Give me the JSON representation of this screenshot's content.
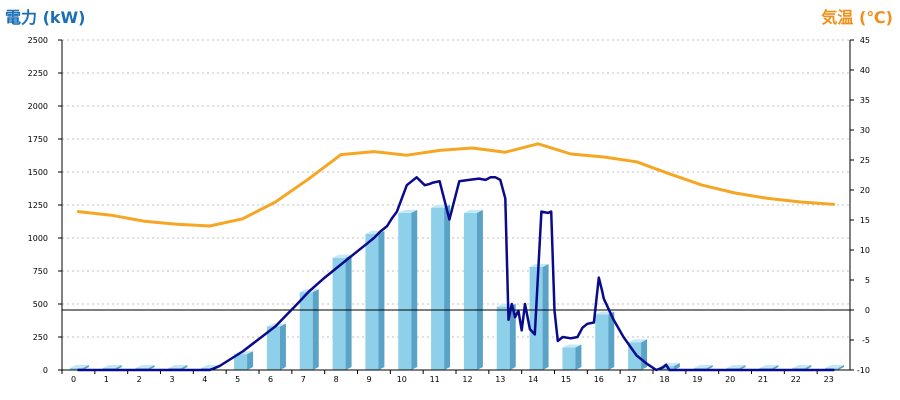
{
  "chart_data": {
    "type": "bar",
    "left_title": "電力 (kW)",
    "right_title": "気温 (℃)",
    "colors": {
      "left_title": "#1a6fb5",
      "right_title": "#f0901a",
      "bar_front": "#8ecfe9",
      "bar_side": "#5aa3c6",
      "bar_top": "#c5e8f6",
      "power_line": "#0a0a8c",
      "temperature_line": "#f5a623",
      "grid": "#c0c0c0"
    },
    "categories": [
      "0",
      "1",
      "2",
      "3",
      "4",
      "5",
      "6",
      "7",
      "8",
      "9",
      "10",
      "11",
      "12",
      "13",
      "14",
      "15",
      "16",
      "17",
      "18",
      "19",
      "20",
      "21",
      "22",
      "23"
    ],
    "ylim": [
      0,
      2500
    ],
    "y_ticks": [
      0,
      250,
      500,
      750,
      1000,
      1250,
      1500,
      1750,
      2000,
      2250,
      2500
    ],
    "y2lim": [
      -10,
      45
    ],
    "y2_ticks": [
      -10,
      -5,
      0,
      5,
      10,
      15,
      20,
      25,
      30,
      35,
      40,
      45
    ],
    "grid": true,
    "series": [
      {
        "kind": "bar",
        "values": [
          0,
          0,
          0,
          0,
          0,
          120,
          330,
          590,
          850,
          1030,
          1190,
          1230,
          1190,
          480,
          780,
          170,
          420,
          210,
          30,
          0,
          0,
          0,
          0,
          0
        ]
      },
      {
        "kind": "line",
        "axis": "left",
        "x": [
          0,
          1,
          2,
          3,
          4,
          4.3,
          5,
          6,
          6.7,
          7,
          7.5,
          8,
          8.5,
          8.8,
          9,
          9.2,
          9.4,
          9.55,
          9.7,
          10,
          10.3,
          10.55,
          10.7,
          10.8,
          11,
          11.3,
          11.6,
          11.9,
          12.2,
          12.4,
          12.55,
          12.7,
          12.85,
          13,
          13.1,
          13.2,
          13.3,
          13.4,
          13.5,
          13.6,
          13.75,
          13.9,
          14.1,
          14.3,
          14.4,
          14.5,
          14.6,
          14.75,
          15,
          15.2,
          15.35,
          15.5,
          15.7,
          15.85,
          15.95,
          16,
          16.3,
          16.6,
          17,
          17.3,
          17.6,
          17.8,
          17.9,
          18,
          18.5,
          19,
          20,
          21,
          22,
          23
        ],
        "values": [
          0,
          0,
          0,
          0,
          0,
          30,
          140,
          330,
          510,
          590,
          700,
          800,
          900,
          960,
          1000,
          1050,
          1090,
          1150,
          1200,
          1400,
          1460,
          1400,
          1410,
          1420,
          1430,
          1140,
          1430,
          1440,
          1450,
          1440,
          1460,
          1460,
          1440,
          1300,
          380,
          500,
          400,
          450,
          300,
          500,
          310,
          270,
          1200,
          1190,
          1200,
          450,
          220,
          250,
          240,
          250,
          320,
          350,
          360,
          700,
          600,
          540,
          380,
          250,
          110,
          50,
          0,
          20,
          40,
          0,
          0,
          0,
          0,
          0,
          0,
          0
        ]
      },
      {
        "kind": "line",
        "axis": "right",
        "x": [
          0,
          1,
          2,
          3,
          4,
          5,
          6,
          7,
          8,
          9,
          10,
          11,
          12,
          13,
          14,
          15,
          16,
          17,
          18,
          19,
          20,
          21,
          22,
          23
        ],
        "values": [
          16.4,
          15.8,
          14.8,
          14.3,
          14.0,
          15.2,
          18.0,
          21.8,
          25.9,
          26.4,
          25.8,
          26.6,
          27.0,
          26.3,
          27.7,
          26.0,
          25.5,
          24.7,
          22.7,
          20.8,
          19.5,
          18.6,
          18.0,
          17.6
        ]
      }
    ]
  }
}
